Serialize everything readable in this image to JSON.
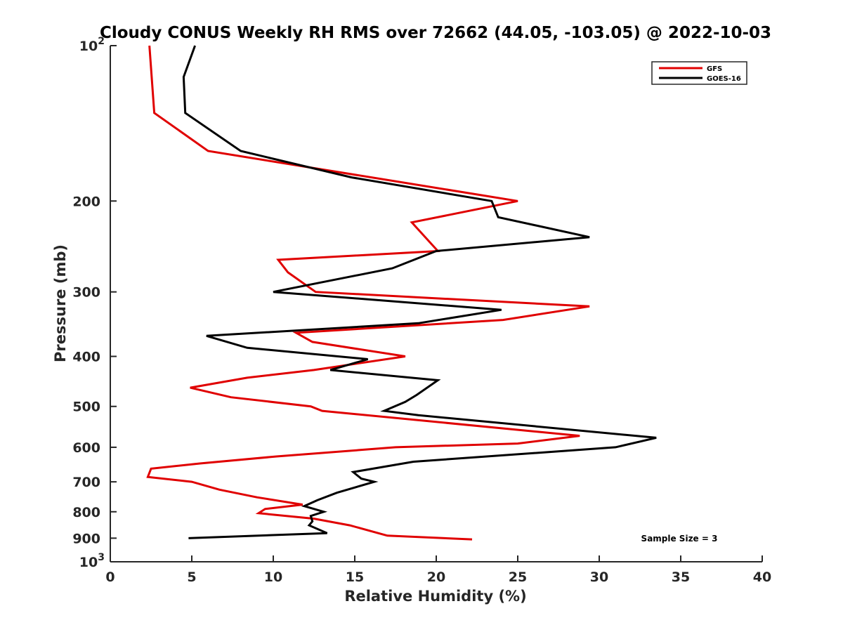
{
  "chart_data": {
    "type": "line",
    "title": "Cloudy CONUS Weekly RH RMS over 72662 (44.05, -103.05) @ 2022-10-03",
    "xlabel": "Relative Humidity (%)",
    "ylabel": "Pressure (mb)",
    "xlim": [
      0,
      40
    ],
    "ylim": [
      100,
      1000
    ],
    "y_scale": "log",
    "y_reversed": true,
    "x_ticks": [
      "0",
      "5",
      "10",
      "15",
      "20",
      "25",
      "30",
      "35",
      "40"
    ],
    "y_ticks": [
      {
        "value": 100,
        "label": "10",
        "sup": "2"
      },
      {
        "value": 200,
        "label": "200"
      },
      {
        "value": 300,
        "label": "300"
      },
      {
        "value": 400,
        "label": "400"
      },
      {
        "value": 500,
        "label": "500"
      },
      {
        "value": 600,
        "label": "600"
      },
      {
        "value": 700,
        "label": "700"
      },
      {
        "value": 800,
        "label": "800"
      },
      {
        "value": 900,
        "label": "900"
      },
      {
        "value": 1000,
        "label": "10",
        "sup": "3"
      }
    ],
    "grid": false,
    "legend_position": "top-right",
    "annotation": "Sample Size = 3",
    "series": [
      {
        "name": "GFS",
        "color": "#e00000",
        "points": [
          {
            "p": 100,
            "rh": 2.4
          },
          {
            "p": 135,
            "rh": 2.7
          },
          {
            "p": 160,
            "rh": 6.0
          },
          {
            "p": 200,
            "rh": 25.0
          },
          {
            "p": 220,
            "rh": 18.5
          },
          {
            "p": 250,
            "rh": 20.1
          },
          {
            "p": 260,
            "rh": 10.3
          },
          {
            "p": 275,
            "rh": 10.9
          },
          {
            "p": 300,
            "rh": 12.6
          },
          {
            "p": 320,
            "rh": 29.4
          },
          {
            "p": 340,
            "rh": 24.1
          },
          {
            "p": 360,
            "rh": 11.4
          },
          {
            "p": 375,
            "rh": 12.4
          },
          {
            "p": 400,
            "rh": 18.1
          },
          {
            "p": 425,
            "rh": 12.5
          },
          {
            "p": 440,
            "rh": 8.4
          },
          {
            "p": 460,
            "rh": 4.9
          },
          {
            "p": 480,
            "rh": 7.4
          },
          {
            "p": 500,
            "rh": 12.3
          },
          {
            "p": 510,
            "rh": 13.0
          },
          {
            "p": 570,
            "rh": 28.8
          },
          {
            "p": 590,
            "rh": 25.0
          },
          {
            "p": 600,
            "rh": 17.5
          },
          {
            "p": 625,
            "rh": 10.2
          },
          {
            "p": 645,
            "rh": 5.5
          },
          {
            "p": 660,
            "rh": 2.5
          },
          {
            "p": 685,
            "rh": 2.3
          },
          {
            "p": 700,
            "rh": 5.0
          },
          {
            "p": 725,
            "rh": 6.7
          },
          {
            "p": 750,
            "rh": 9.0
          },
          {
            "p": 775,
            "rh": 11.8
          },
          {
            "p": 790,
            "rh": 9.5
          },
          {
            "p": 805,
            "rh": 9.1
          },
          {
            "p": 825,
            "rh": 12.5
          },
          {
            "p": 850,
            "rh": 14.7
          },
          {
            "p": 890,
            "rh": 17.0
          },
          {
            "p": 905,
            "rh": 22.2
          }
        ]
      },
      {
        "name": "GOES-16",
        "color": "#000000",
        "points": [
          {
            "p": 100,
            "rh": 5.2
          },
          {
            "p": 115,
            "rh": 4.5
          },
          {
            "p": 135,
            "rh": 4.6
          },
          {
            "p": 160,
            "rh": 8.0
          },
          {
            "p": 180,
            "rh": 14.8
          },
          {
            "p": 200,
            "rh": 23.4
          },
          {
            "p": 215,
            "rh": 23.8
          },
          {
            "p": 235,
            "rh": 29.4
          },
          {
            "p": 250,
            "rh": 20.0
          },
          {
            "p": 270,
            "rh": 17.3
          },
          {
            "p": 300,
            "rh": 10.0
          },
          {
            "p": 325,
            "rh": 24.0
          },
          {
            "p": 345,
            "rh": 18.9
          },
          {
            "p": 365,
            "rh": 5.9
          },
          {
            "p": 385,
            "rh": 8.4
          },
          {
            "p": 405,
            "rh": 15.8
          },
          {
            "p": 425,
            "rh": 13.5
          },
          {
            "p": 445,
            "rh": 20.1
          },
          {
            "p": 475,
            "rh": 18.8
          },
          {
            "p": 490,
            "rh": 18.1
          },
          {
            "p": 510,
            "rh": 16.8
          },
          {
            "p": 520,
            "rh": 18.9
          },
          {
            "p": 575,
            "rh": 33.5
          },
          {
            "p": 600,
            "rh": 31.0
          },
          {
            "p": 640,
            "rh": 18.6
          },
          {
            "p": 670,
            "rh": 14.9
          },
          {
            "p": 690,
            "rh": 15.4
          },
          {
            "p": 700,
            "rh": 16.2
          },
          {
            "p": 735,
            "rh": 13.9
          },
          {
            "p": 760,
            "rh": 12.7
          },
          {
            "p": 780,
            "rh": 11.9
          },
          {
            "p": 800,
            "rh": 13.1
          },
          {
            "p": 815,
            "rh": 12.3
          },
          {
            "p": 835,
            "rh": 12.4
          },
          {
            "p": 850,
            "rh": 12.2
          },
          {
            "p": 880,
            "rh": 13.3
          },
          {
            "p": 900,
            "rh": 4.8
          }
        ]
      }
    ]
  }
}
